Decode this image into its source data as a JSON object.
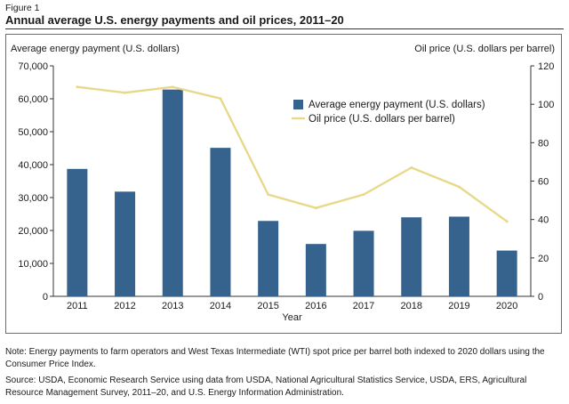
{
  "figure": {
    "label": "Figure 1",
    "title": "Annual average U.S. energy payments and oil prices, 2011–20",
    "note": "Note: Energy payments to farm operators and West Texas Intermediate (WTI) spot price per barrel both indexed to 2020 dollars using the Consumer Price Index.",
    "source": "Source: USDA, Economic Research Service using data from USDA, National Agricultural Statistics Service, USDA, ERS, Agricultural Resource Management Survey, 2011–20, and U.S. Energy Information Administration."
  },
  "colors": {
    "bar": "#36638e",
    "line": "#e8d98a",
    "axis": "#333333"
  },
  "chart_data": {
    "type": "bar",
    "title": "Annual average U.S. energy payments and oil prices, 2011–20",
    "xlabel": "Year",
    "ylabel": "Average energy payment (U.S. dollars)",
    "y2label": "Oil price (U.S. dollars per barrel)",
    "categories": [
      "2011",
      "2012",
      "2013",
      "2014",
      "2015",
      "2016",
      "2017",
      "2018",
      "2019",
      "2020"
    ],
    "ylim": [
      0,
      70000
    ],
    "y_ticks": [
      0,
      10000,
      20000,
      30000,
      40000,
      50000,
      60000,
      70000
    ],
    "y_tick_labels": [
      "0",
      "10,000",
      "20,000",
      "30,000",
      "40,000",
      "50,000",
      "60,000",
      "70,000"
    ],
    "y2lim": [
      0,
      120
    ],
    "y2_ticks": [
      0,
      20,
      40,
      60,
      80,
      100,
      120
    ],
    "y2_tick_labels": [
      "0",
      "20",
      "40",
      "60",
      "80",
      "100",
      "120"
    ],
    "legend_position": "upper-right",
    "grid": false,
    "series": [
      {
        "name": "Average energy payment (U.S. dollars)",
        "type": "bar",
        "axis": "left",
        "values": [
          38700,
          31800,
          62800,
          45100,
          22900,
          15900,
          19900,
          24000,
          24200,
          13900
        ]
      },
      {
        "name": "Oil price (U.S. dollars per barrel)",
        "type": "line",
        "axis": "right",
        "values": [
          109,
          106,
          109,
          103,
          53,
          46,
          53,
          67,
          57,
          39
        ]
      }
    ]
  }
}
